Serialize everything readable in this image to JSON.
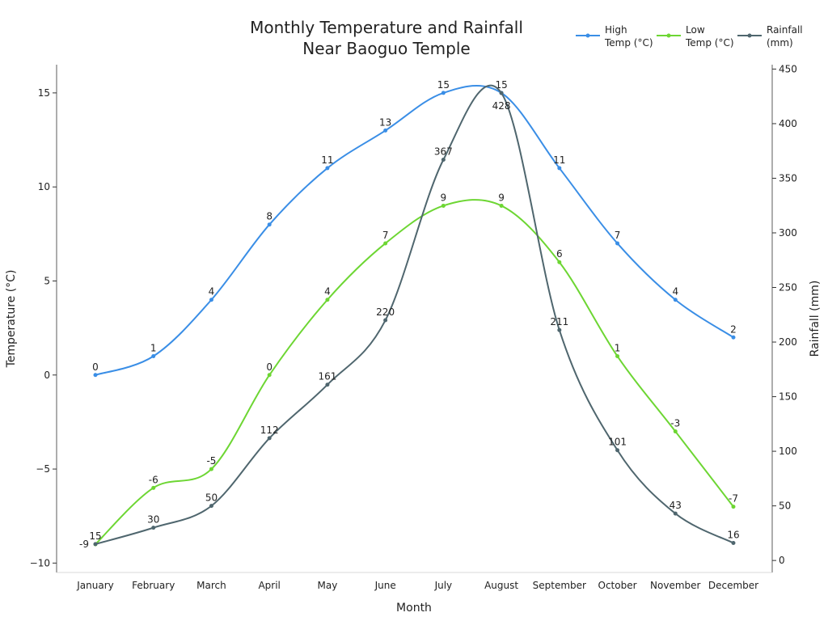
{
  "chart_data": {
    "type": "line",
    "title": "Monthly Temperature and Rainfall\nNear Baoguo Temple",
    "xlabel": "Month",
    "ylabel": "Temperature (°C)",
    "y2label": "Rainfall (mm)",
    "categories": [
      "January",
      "February",
      "March",
      "April",
      "May",
      "June",
      "July",
      "August",
      "September",
      "October",
      "November",
      "December"
    ],
    "ylim": [
      -10.5,
      16.5
    ],
    "y2lim": [
      -11,
      454
    ],
    "yticks": [
      -10,
      -5,
      0,
      5,
      10,
      15
    ],
    "y2ticks": [
      0,
      50,
      100,
      150,
      200,
      250,
      300,
      350,
      400,
      450
    ],
    "legend_placement": "top-right",
    "grid": false,
    "series": [
      {
        "name": "High\nTemp (°C)",
        "axis": "left",
        "color": "#3a8ee6",
        "values": [
          0,
          1,
          4,
          8,
          11,
          13,
          15,
          15,
          11,
          7,
          4,
          2
        ]
      },
      {
        "name": "Low\nTemp (°C)",
        "axis": "left",
        "color": "#6dd633",
        "values": [
          -9,
          -6,
          -5,
          0,
          4,
          7,
          9,
          9,
          6,
          1,
          -3,
          -7
        ]
      },
      {
        "name": "Rainfall\n(mm)",
        "axis": "right",
        "color": "#4f666e",
        "values": [
          15,
          30,
          50,
          112,
          161,
          220,
          367,
          428,
          211,
          101,
          43,
          16
        ]
      }
    ]
  }
}
